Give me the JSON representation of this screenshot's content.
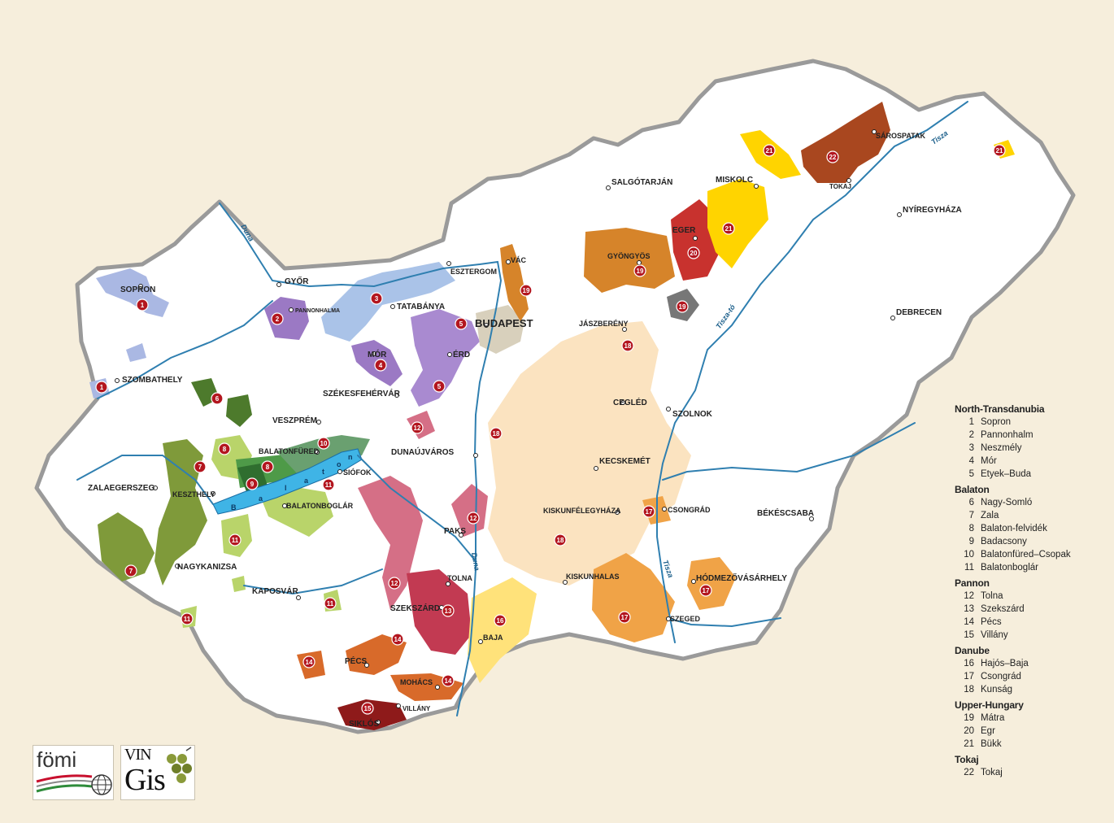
{
  "cities": [
    {
      "name": "SOPRON",
      "big": false
    },
    {
      "name": "GYŐR",
      "big": false
    },
    {
      "name": "PANNONHALMA",
      "big": false
    },
    {
      "name": "ESZTERGOM",
      "big": false
    },
    {
      "name": "VÁC",
      "big": false
    },
    {
      "name": "TATABÁNYA",
      "big": false
    },
    {
      "name": "BUDAPEST",
      "big": true
    },
    {
      "name": "MÓR",
      "big": false
    },
    {
      "name": "ÉRD",
      "big": false
    },
    {
      "name": "SZOMBATHELY",
      "big": false
    },
    {
      "name": "SZÉKESFEHÉRVÁR",
      "big": false
    },
    {
      "name": "VESZPRÉM",
      "big": false
    },
    {
      "name": "BALATONFÜRED",
      "big": false
    },
    {
      "name": "SIÓFOK",
      "big": false
    },
    {
      "name": "DUNAÚJVÁROS",
      "big": false
    },
    {
      "name": "ZALAEGERSZEG",
      "big": false
    },
    {
      "name": "KESZTHELY",
      "big": false
    },
    {
      "name": "BALATONBOGLÁR",
      "big": false
    },
    {
      "name": "NAGYKANIZSA",
      "big": false
    },
    {
      "name": "KAPOSVÁR",
      "big": false
    },
    {
      "name": "PAKS",
      "big": false
    },
    {
      "name": "TOLNA",
      "big": false
    },
    {
      "name": "SZEKSZÁRD",
      "big": false
    },
    {
      "name": "PÉCS",
      "big": false
    },
    {
      "name": "MOHÁCS",
      "big": false
    },
    {
      "name": "SIKLÓS",
      "big": false
    },
    {
      "name": "VILLÁNY",
      "big": false
    },
    {
      "name": "BAJA",
      "big": false
    },
    {
      "name": "SALGÓTARJÁN",
      "big": false
    },
    {
      "name": "GYÖNGYÖS",
      "big": false
    },
    {
      "name": "EGER",
      "big": false
    },
    {
      "name": "MISKOLC",
      "big": false
    },
    {
      "name": "SÁROSPATAK",
      "big": false
    },
    {
      "name": "TOKAJ",
      "big": false
    },
    {
      "name": "NYÍREGYHÁZA",
      "big": false
    },
    {
      "name": "JÁSZBERÉNY",
      "big": false
    },
    {
      "name": "DEBRECEN",
      "big": false
    },
    {
      "name": "CEGLÉD",
      "big": false
    },
    {
      "name": "SZOLNOK",
      "big": false
    },
    {
      "name": "KECSKEMÉT",
      "big": false
    },
    {
      "name": "KISKUNFÉLEGYHÁZA",
      "big": false
    },
    {
      "name": "CSONGRÁD",
      "big": false
    },
    {
      "name": "BÉKÉSCSABA",
      "big": false
    },
    {
      "name": "KISKUNHALAS",
      "big": false
    },
    {
      "name": "HÓDMEZŐVÁSÁRHELY",
      "big": false
    },
    {
      "name": "SZEGED",
      "big": false
    }
  ],
  "rivers": [
    "Duna",
    "Duna",
    "Tisza",
    "Tisza-tó",
    "Tisza"
  ],
  "lake_letters": [
    "B",
    "a",
    "l",
    "a",
    "t",
    "o",
    "n"
  ],
  "region_markers": [
    "1",
    "1",
    "2",
    "3",
    "4",
    "5",
    "5",
    "6",
    "7",
    "7",
    "8",
    "8",
    "9",
    "10",
    "11",
    "11",
    "11",
    "11",
    "12",
    "12",
    "12",
    "13",
    "14",
    "14",
    "14",
    "15",
    "16",
    "17",
    "17",
    "17",
    "18",
    "18",
    "18",
    "19",
    "19",
    "19",
    "20",
    "21",
    "21",
    "21",
    "22"
  ],
  "legend": [
    {
      "title": "North-Transdanubia",
      "items": [
        {
          "num": "1",
          "name": "Sopron"
        },
        {
          "num": "2",
          "name": "Pannonhalm"
        },
        {
          "num": "3",
          "name": "Neszmély"
        },
        {
          "num": "4",
          "name": "Mór"
        },
        {
          "num": "5",
          "name": "Etyek–Buda"
        }
      ]
    },
    {
      "title": "Balaton",
      "items": [
        {
          "num": "6",
          "name": "Nagy-Somló"
        },
        {
          "num": "7",
          "name": "Zala"
        },
        {
          "num": "8",
          "name": "Balaton-felvidék"
        },
        {
          "num": "9",
          "name": "Badacsony"
        },
        {
          "num": "10",
          "name": "Balatonfüred–Csopak"
        },
        {
          "num": "11",
          "name": "Balatonboglár"
        }
      ]
    },
    {
      "title": "Pannon",
      "items": [
        {
          "num": "12",
          "name": "Tolna"
        },
        {
          "num": "13",
          "name": "Szekszárd"
        },
        {
          "num": "14",
          "name": "Pécs"
        },
        {
          "num": "15",
          "name": "Villány"
        }
      ]
    },
    {
      "title": "Danube",
      "items": [
        {
          "num": "16",
          "name": "Hajós–Baja"
        },
        {
          "num": "17",
          "name": "Csongrád"
        },
        {
          "num": "18",
          "name": "Kunság"
        }
      ]
    },
    {
      "title": "Upper-Hungary",
      "items": [
        {
          "num": "19",
          "name": "Mátra"
        },
        {
          "num": "20",
          "name": "Egr"
        },
        {
          "num": "21",
          "name": "Bükk"
        }
      ]
    },
    {
      "title": "Tokaj",
      "items": [
        {
          "num": "22",
          "name": "Tokaj"
        }
      ]
    }
  ],
  "logos": {
    "fomi": "fömi",
    "vin": "VIN",
    "gis": "Gis"
  },
  "colors": {
    "background": "#f6eedc",
    "land": "#ffffff",
    "border": "#9a9a9a",
    "river": "#2f7fb0",
    "lake": "#3fb4e6",
    "marker": "#b3161f",
    "sopron": "#aab8e3",
    "pannonhalma": "#9b79c4",
    "neszmely": "#aac3e8",
    "mor": "#9b79c4",
    "etyek": "#a98ad0",
    "somlo": "#4d7a2c",
    "zala": "#7f9a3a",
    "felvidek": "#4e9a48",
    "badacsony": "#2f6e2f",
    "csopak": "#6aa070",
    "boglar": "#b9d46a",
    "tolna": "#d56f86",
    "szekszard": "#c23a52",
    "pecs": "#d86a2a",
    "villany": "#8e1a1a",
    "hajos": "#ffe27a",
    "csongrad": "#f0a347",
    "kunsag": "#fbe3c0",
    "matra": "#d6842a",
    "eger": "#c8322e",
    "bukk": "#ffd400",
    "tokaj": "#a9471f",
    "matra_dark": "#777777"
  }
}
